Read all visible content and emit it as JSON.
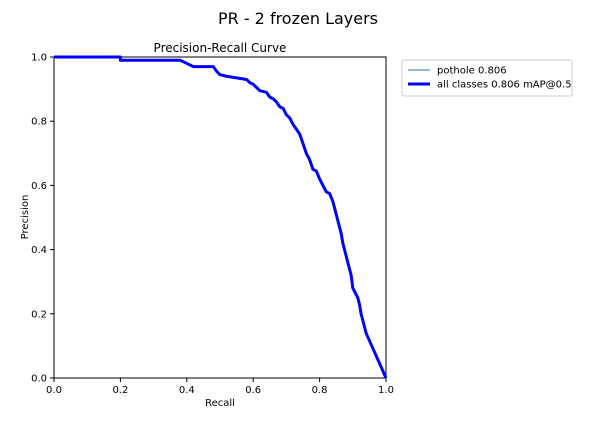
{
  "figure": {
    "suptitle": "PR - 2 frozen Layers"
  },
  "chart_data": {
    "type": "line",
    "title": "Precision-Recall Curve",
    "xlabel": "Recall",
    "ylabel": "Precision",
    "xlim": [
      0,
      1
    ],
    "ylim": [
      0,
      1
    ],
    "xticks": [
      "0.0",
      "0.2",
      "0.4",
      "0.6",
      "0.8",
      "1.0"
    ],
    "yticks": [
      "0.0",
      "0.2",
      "0.4",
      "0.6",
      "0.8",
      "1.0"
    ],
    "grid": false,
    "legend_position": "outside-right-top",
    "series": [
      {
        "name": "pothole 0.806",
        "color": "#1f77b4",
        "style": "thin",
        "x": [
          0.0,
          0.2,
          0.2,
          0.38,
          0.39,
          0.4,
          0.41,
          0.42,
          0.48,
          0.49,
          0.5,
          0.52,
          0.55,
          0.58,
          0.59,
          0.6,
          0.61,
          0.62,
          0.64,
          0.65,
          0.66,
          0.67,
          0.68,
          0.69,
          0.7,
          0.71,
          0.72,
          0.73,
          0.74,
          0.75,
          0.76,
          0.77,
          0.78,
          0.79,
          0.8,
          0.81,
          0.82,
          0.83,
          0.84,
          0.85,
          0.855,
          0.86,
          0.865,
          0.87,
          0.875,
          0.88,
          0.885,
          0.89,
          0.895,
          0.9,
          0.905,
          0.91,
          0.915,
          0.92,
          0.925,
          0.93,
          0.935,
          0.94,
          1.0
        ],
        "y": [
          1.0,
          1.0,
          0.99,
          0.99,
          0.985,
          0.98,
          0.975,
          0.97,
          0.97,
          0.955,
          0.945,
          0.94,
          0.935,
          0.93,
          0.92,
          0.915,
          0.905,
          0.895,
          0.89,
          0.875,
          0.87,
          0.86,
          0.845,
          0.84,
          0.82,
          0.81,
          0.79,
          0.775,
          0.76,
          0.73,
          0.7,
          0.68,
          0.65,
          0.645,
          0.62,
          0.6,
          0.58,
          0.575,
          0.55,
          0.51,
          0.49,
          0.47,
          0.45,
          0.42,
          0.4,
          0.38,
          0.36,
          0.34,
          0.32,
          0.28,
          0.27,
          0.26,
          0.25,
          0.23,
          0.2,
          0.18,
          0.16,
          0.14,
          0.0
        ]
      },
      {
        "name": "all classes 0.806 mAP@0.5",
        "color": "#0000ff",
        "style": "thick",
        "x": [
          0.0,
          0.2,
          0.2,
          0.38,
          0.39,
          0.4,
          0.41,
          0.42,
          0.48,
          0.49,
          0.5,
          0.52,
          0.55,
          0.58,
          0.59,
          0.6,
          0.61,
          0.62,
          0.64,
          0.65,
          0.66,
          0.67,
          0.68,
          0.69,
          0.7,
          0.71,
          0.72,
          0.73,
          0.74,
          0.75,
          0.76,
          0.77,
          0.78,
          0.79,
          0.8,
          0.81,
          0.82,
          0.83,
          0.84,
          0.85,
          0.855,
          0.86,
          0.865,
          0.87,
          0.875,
          0.88,
          0.885,
          0.89,
          0.895,
          0.9,
          0.905,
          0.91,
          0.915,
          0.92,
          0.925,
          0.93,
          0.935,
          0.94,
          1.0
        ],
        "y": [
          1.0,
          1.0,
          0.99,
          0.99,
          0.985,
          0.98,
          0.975,
          0.97,
          0.97,
          0.955,
          0.945,
          0.94,
          0.935,
          0.93,
          0.92,
          0.915,
          0.905,
          0.895,
          0.89,
          0.875,
          0.87,
          0.86,
          0.845,
          0.84,
          0.82,
          0.81,
          0.79,
          0.775,
          0.76,
          0.73,
          0.7,
          0.68,
          0.65,
          0.645,
          0.62,
          0.6,
          0.58,
          0.575,
          0.55,
          0.51,
          0.49,
          0.47,
          0.45,
          0.42,
          0.4,
          0.38,
          0.36,
          0.34,
          0.32,
          0.28,
          0.27,
          0.26,
          0.25,
          0.23,
          0.2,
          0.18,
          0.16,
          0.14,
          0.0
        ]
      }
    ]
  }
}
